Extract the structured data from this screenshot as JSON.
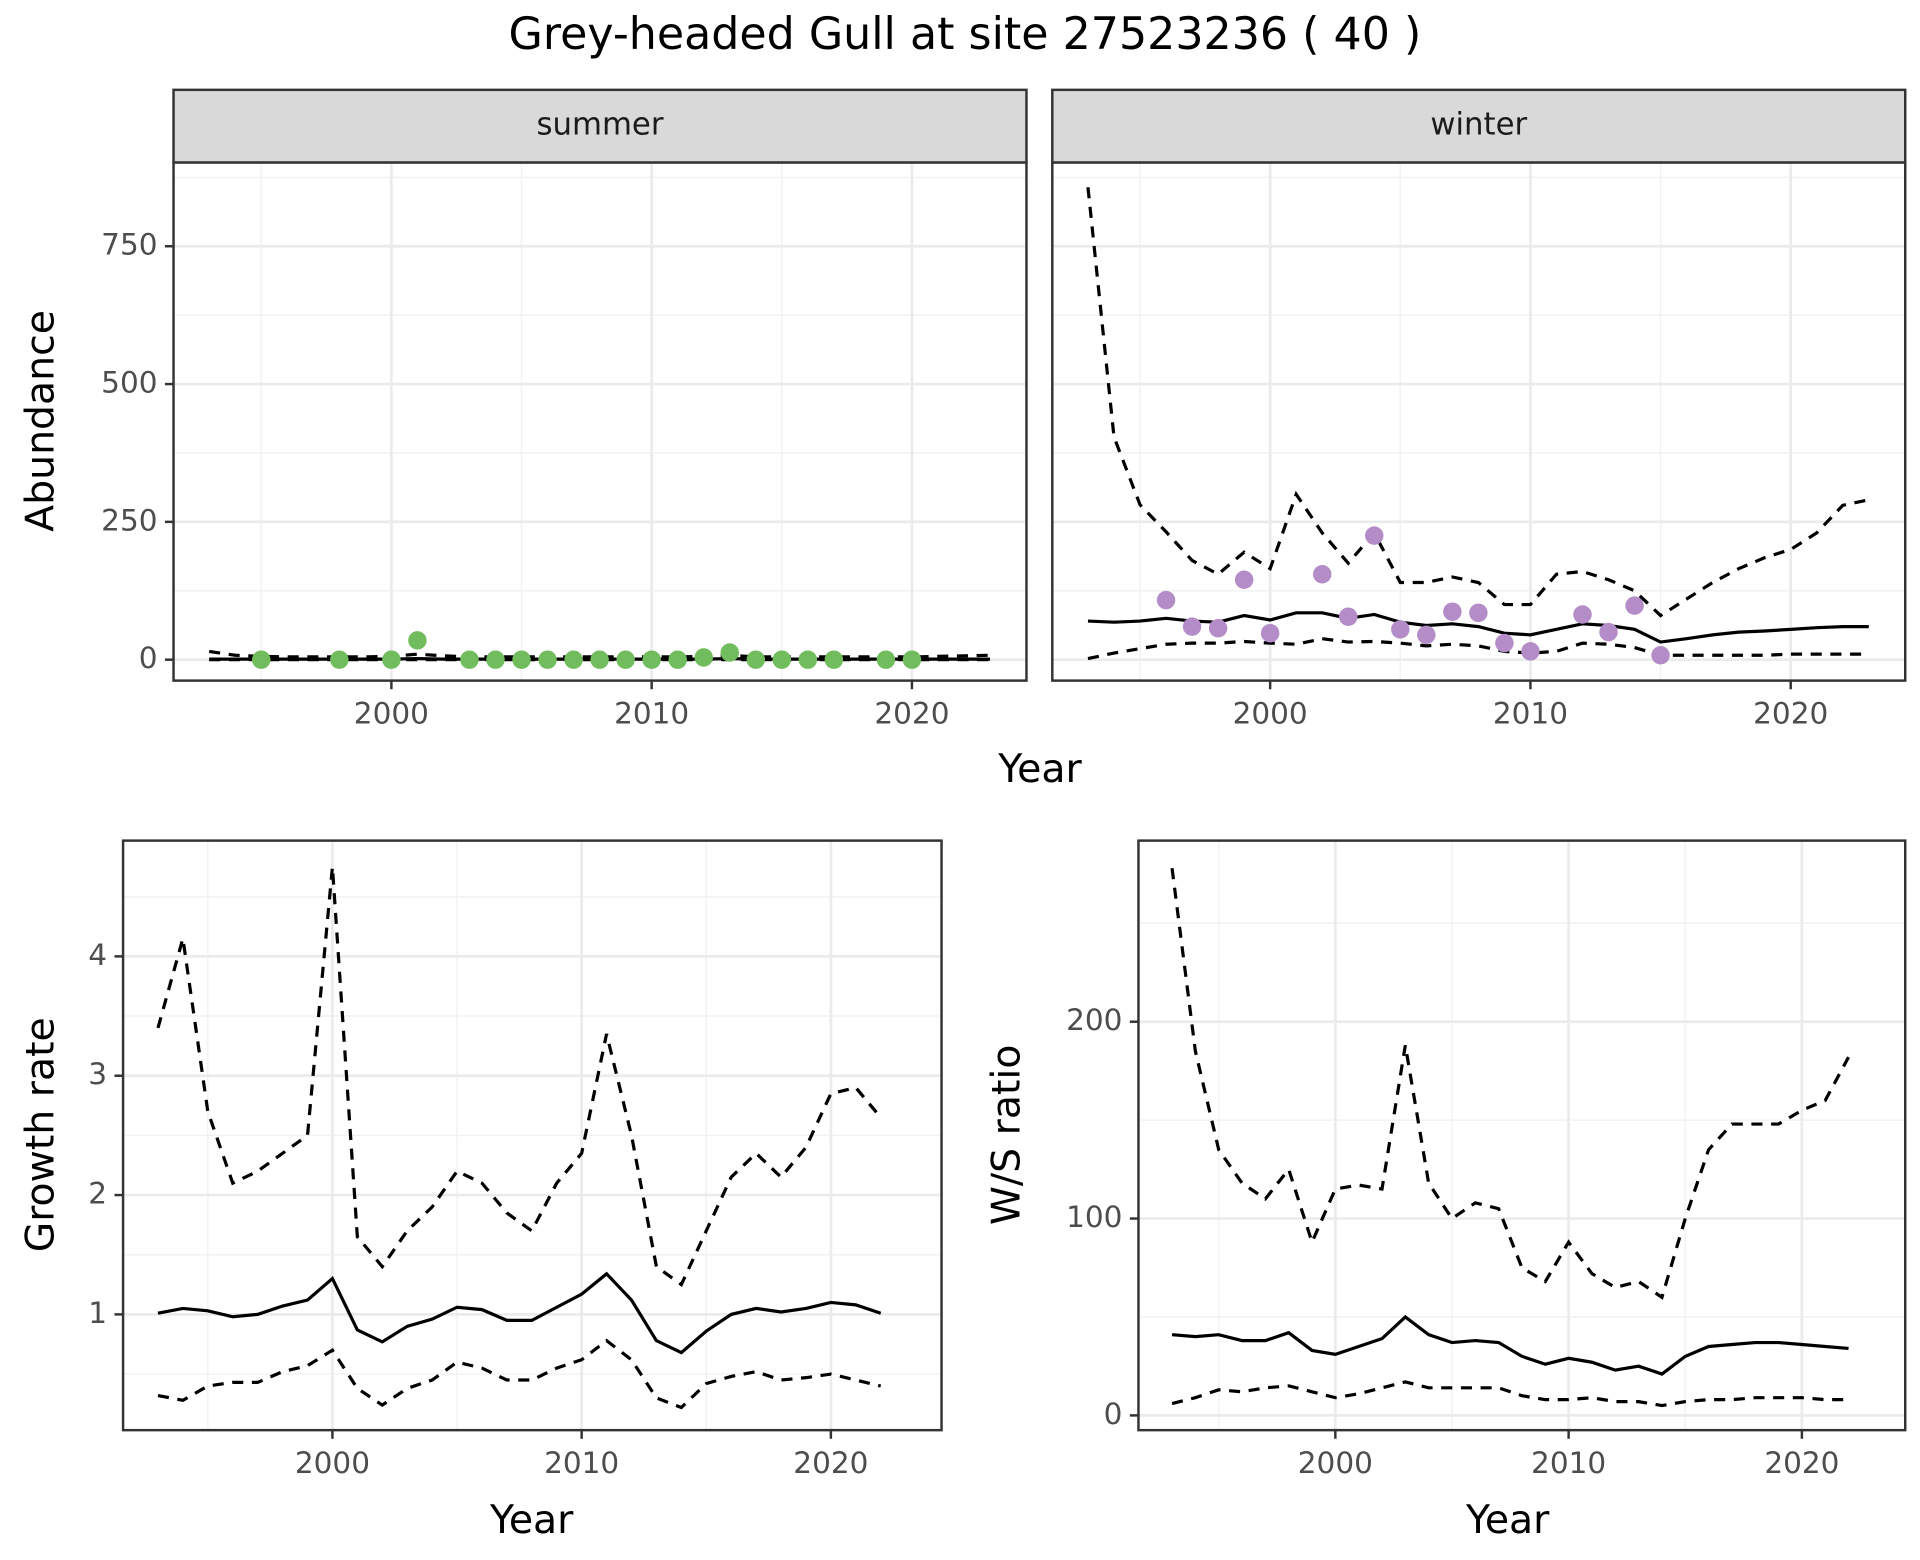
{
  "title": "Grey-headed Gull at site 27523236 ( 40 )",
  "chart_data": [
    {
      "type": "line",
      "facet": "summer",
      "ylabel": "Abundance",
      "xlabel": "Year",
      "xlim": [
        1991.63,
        2024.4
      ],
      "ylim": [
        -38,
        902
      ],
      "xticks": [
        2000,
        2010,
        2020
      ],
      "yticks": [
        0,
        250,
        500,
        750
      ],
      "grid": true,
      "ytick_labels": true,
      "x": [
        1993,
        1994,
        1995,
        1996,
        1997,
        1998,
        1999,
        2000,
        2001,
        2002,
        2003,
        2004,
        2005,
        2006,
        2007,
        2008,
        2009,
        2010,
        2011,
        2012,
        2013,
        2014,
        2015,
        2016,
        2017,
        2018,
        2019,
        2020,
        2021,
        2022,
        2023
      ],
      "series": [
        {
          "color": "#000000",
          "dash": false,
          "values": [
            1,
            1,
            1,
            1,
            1,
            1,
            1,
            1,
            2,
            1,
            1,
            1,
            1,
            1,
            1,
            1,
            1,
            1,
            1,
            1,
            2,
            1,
            1,
            1,
            1,
            1,
            1,
            1,
            1,
            1,
            1
          ]
        },
        {
          "color": "#000000",
          "dash": true,
          "values": [
            0,
            0,
            0,
            0,
            0,
            0,
            0,
            0,
            0,
            0,
            0,
            0,
            0,
            0,
            0,
            0,
            0,
            0,
            0,
            0,
            0,
            0,
            0,
            0,
            0,
            0,
            0,
            0,
            0,
            0,
            0
          ]
        },
        {
          "color": "#000000",
          "dash": true,
          "values": [
            15,
            8,
            6,
            5,
            5,
            5,
            5,
            6,
            10,
            7,
            5,
            5,
            5,
            5,
            5,
            5,
            5,
            5,
            5,
            6,
            8,
            5,
            5,
            5,
            5,
            5,
            5,
            5,
            6,
            7,
            8
          ]
        }
      ],
      "points": {
        "color": "#71bd5e",
        "x": [
          1995,
          1998,
          2000,
          2001,
          2003,
          2004,
          2005,
          2006,
          2007,
          2008,
          2009,
          2010,
          2011,
          2012,
          2013,
          2014,
          2015,
          2016,
          2017,
          2019,
          2020
        ],
        "values": [
          0,
          0,
          0,
          35,
          0,
          0,
          0,
          0,
          0,
          0,
          0,
          0,
          0,
          4,
          13,
          0,
          0,
          0,
          0,
          0,
          0
        ]
      }
    },
    {
      "type": "line",
      "facet": "winter",
      "xlim": [
        1991.63,
        2024.4
      ],
      "ylim": [
        -38,
        902
      ],
      "xticks": [
        2000,
        2010,
        2020
      ],
      "yticks": [
        0,
        250,
        500,
        750
      ],
      "grid": true,
      "ytick_labels": false,
      "x": [
        1993,
        1994,
        1995,
        1996,
        1997,
        1998,
        1999,
        2000,
        2001,
        2002,
        2003,
        2004,
        2005,
        2006,
        2007,
        2008,
        2009,
        2010,
        2011,
        2012,
        2013,
        2014,
        2015,
        2016,
        2017,
        2018,
        2019,
        2020,
        2021,
        2022,
        2023
      ],
      "series": [
        {
          "color": "#000000",
          "dash": false,
          "values": [
            70,
            68,
            70,
            75,
            70,
            68,
            80,
            72,
            85,
            85,
            75,
            82,
            68,
            62,
            65,
            60,
            48,
            45,
            55,
            65,
            62,
            55,
            32,
            38,
            45,
            50,
            52,
            55,
            58,
            60,
            60
          ]
        },
        {
          "color": "#000000",
          "dash": true,
          "values": [
            2,
            12,
            20,
            28,
            30,
            30,
            33,
            30,
            28,
            38,
            32,
            33,
            30,
            25,
            28,
            25,
            15,
            12,
            15,
            30,
            28,
            22,
            8,
            8,
            8,
            8,
            8,
            10,
            10,
            10,
            10
          ]
        },
        {
          "color": "#000000",
          "dash": true,
          "values": [
            857,
            404,
            281,
            232,
            180,
            155,
            195,
            165,
            300,
            230,
            175,
            230,
            140,
            140,
            150,
            140,
            100,
            100,
            155,
            160,
            145,
            125,
            80,
            110,
            140,
            165,
            185,
            200,
            230,
            280,
            290
          ]
        }
      ],
      "points": {
        "color": "#b48cc8",
        "x": [
          1996,
          1997,
          1998,
          1999,
          2000,
          2002,
          2003,
          2004,
          2005,
          2006,
          2007,
          2008,
          2009,
          2010,
          2012,
          2013,
          2014,
          2015
        ],
        "values": [
          108,
          60,
          57,
          145,
          48,
          155,
          78,
          225,
          55,
          45,
          87,
          85,
          30,
          15,
          82,
          50,
          98,
          8
        ]
      }
    },
    {
      "type": "line",
      "ylabel": "Growth rate",
      "xlabel": "Year",
      "xlim": [
        1991.6,
        2024.44
      ],
      "ylim": [
        0.03,
        4.97
      ],
      "xticks": [
        2000,
        2010,
        2020
      ],
      "yticks": [
        1,
        2,
        3,
        4
      ],
      "grid": true,
      "ytick_labels": true,
      "x": [
        1993,
        1994,
        1995,
        1996,
        1997,
        1998,
        1999,
        2000,
        2001,
        2002,
        2003,
        2004,
        2005,
        2006,
        2007,
        2008,
        2009,
        2010,
        2011,
        2012,
        2013,
        2014,
        2015,
        2016,
        2017,
        2018,
        2019,
        2020,
        2021,
        2022
      ],
      "series": [
        {
          "color": "#000000",
          "dash": false,
          "values": [
            1.01,
            1.05,
            1.03,
            0.98,
            1.0,
            1.07,
            1.12,
            1.3,
            0.87,
            0.77,
            0.9,
            0.96,
            1.06,
            1.04,
            0.95,
            0.95,
            1.06,
            1.17,
            1.34,
            1.12,
            0.78,
            0.68,
            0.86,
            1.0,
            1.05,
            1.02,
            1.05,
            1.1,
            1.08,
            1.01
          ]
        },
        {
          "color": "#000000",
          "dash": true,
          "values": [
            0.32,
            0.28,
            0.4,
            0.43,
            0.43,
            0.52,
            0.57,
            0.7,
            0.38,
            0.24,
            0.38,
            0.45,
            0.6,
            0.55,
            0.45,
            0.45,
            0.55,
            0.62,
            0.78,
            0.62,
            0.3,
            0.22,
            0.42,
            0.48,
            0.52,
            0.45,
            0.47,
            0.5,
            0.45,
            0.4
          ]
        },
        {
          "color": "#000000",
          "dash": true,
          "values": [
            3.4,
            4.15,
            2.7,
            2.1,
            2.2,
            2.35,
            2.5,
            4.75,
            1.65,
            1.4,
            1.7,
            1.9,
            2.2,
            2.1,
            1.85,
            1.7,
            2.1,
            2.35,
            3.35,
            2.5,
            1.4,
            1.25,
            1.7,
            2.15,
            2.35,
            2.15,
            2.4,
            2.85,
            2.9,
            2.65
          ]
        }
      ]
    },
    {
      "type": "line",
      "ylabel": "W/S ratio",
      "xlabel": "Year",
      "xlim": [
        1991.56,
        2024.43
      ],
      "ylim": [
        -7.5,
        292
      ],
      "xticks": [
        2000,
        2010,
        2020
      ],
      "yticks": [
        0,
        100,
        200
      ],
      "grid": true,
      "ytick_labels": true,
      "x": [
        1993,
        1994,
        1995,
        1996,
        1997,
        1998,
        1999,
        2000,
        2001,
        2002,
        2003,
        2004,
        2005,
        2006,
        2007,
        2008,
        2009,
        2010,
        2011,
        2012,
        2013,
        2014,
        2015,
        2016,
        2017,
        2018,
        2019,
        2020,
        2021,
        2022
      ],
      "series": [
        {
          "color": "#000000",
          "dash": false,
          "values": [
            41,
            40,
            41,
            38,
            38,
            42,
            33,
            31,
            35,
            39,
            50,
            41,
            37,
            38,
            37,
            30,
            26,
            29,
            27,
            23,
            25,
            21,
            30,
            35,
            36,
            37,
            37,
            36,
            35,
            34
          ]
        },
        {
          "color": "#000000",
          "dash": true,
          "values": [
            6,
            9,
            13,
            12,
            14,
            15,
            12,
            9,
            11,
            14,
            17,
            14,
            14,
            14,
            14,
            10,
            8,
            8,
            9,
            7,
            7,
            5,
            7,
            8,
            8,
            9,
            9,
            9,
            8,
            8
          ]
        },
        {
          "color": "#000000",
          "dash": true,
          "values": [
            278,
            185,
            135,
            118,
            110,
            125,
            88,
            115,
            117,
            115,
            188,
            118,
            100,
            108,
            105,
            75,
            68,
            88,
            72,
            65,
            68,
            60,
            100,
            135,
            148,
            148,
            148,
            155,
            160,
            182
          ]
        }
      ]
    }
  ]
}
